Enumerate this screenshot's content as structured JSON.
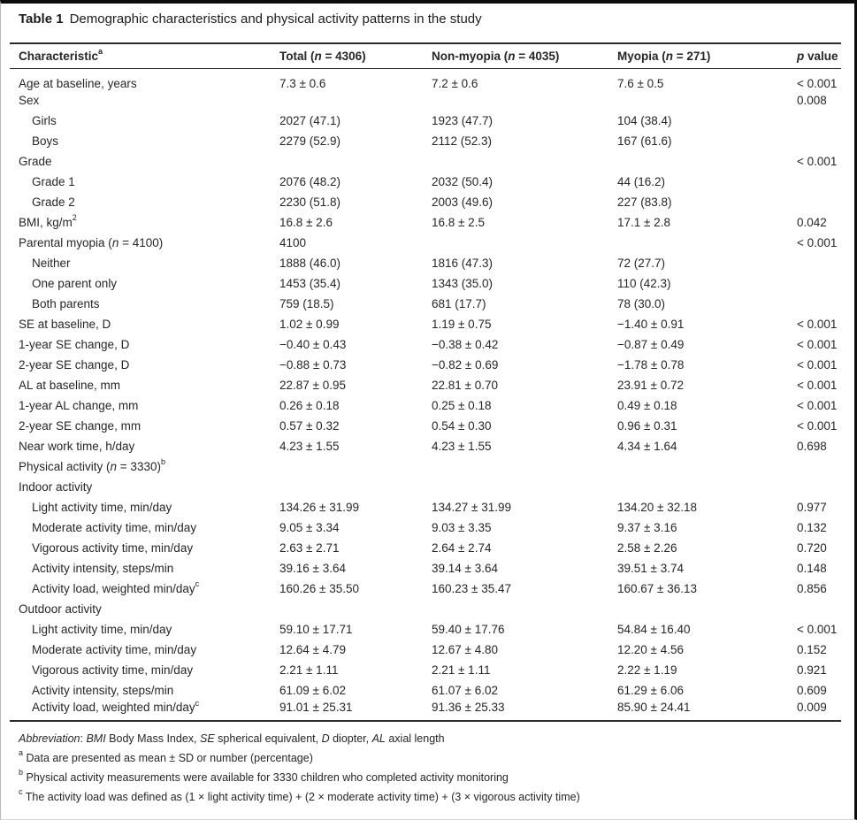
{
  "table": {
    "title_label": "Table 1",
    "title_text": "Demographic characteristics and physical activity patterns in the study",
    "columns": [
      {
        "key": "characteristic",
        "label": "Characteristic<sup>a</sup>"
      },
      {
        "key": "total",
        "label": "Total (<i>n</i> = 4306)"
      },
      {
        "key": "non-myopia",
        "label": "Non-myopia (<i>n</i> = 4035)"
      },
      {
        "key": "myopia",
        "label": "Myopia (<i>n</i> = 271)"
      },
      {
        "key": "p-value",
        "label": "<i>p</i> value"
      }
    ],
    "rows": [
      {
        "label": "Age at baseline, years",
        "indent": 0,
        "total": "7.3 ± 0.6",
        "non_myopia": "7.2 ± 0.6",
        "myopia": "7.6 ± 0.5",
        "p": "< 0.001"
      },
      {
        "label": "Sex",
        "indent": 0,
        "total": "",
        "non_myopia": "",
        "myopia": "",
        "p": "0.008"
      },
      {
        "label": "Girls",
        "indent": 1,
        "total": "2027 (47.1)",
        "non_myopia": "1923 (47.7)",
        "myopia": "104 (38.4)",
        "p": ""
      },
      {
        "label": "Boys",
        "indent": 1,
        "total": "2279 (52.9)",
        "non_myopia": "2112 (52.3)",
        "myopia": "167 (61.6)",
        "p": ""
      },
      {
        "label": "Grade",
        "indent": 0,
        "total": "",
        "non_myopia": "",
        "myopia": "",
        "p": "< 0.001"
      },
      {
        "label": "Grade 1",
        "indent": 1,
        "total": "2076 (48.2)",
        "non_myopia": "2032 (50.4)",
        "myopia": "44 (16.2)",
        "p": ""
      },
      {
        "label": "Grade 2",
        "indent": 1,
        "total": "2230 (51.8)",
        "non_myopia": "2003 (49.6)",
        "myopia": "227 (83.8)",
        "p": ""
      },
      {
        "label": "BMI, kg/m<sup>2</sup>",
        "indent": 0,
        "total": "16.8 ± 2.6",
        "non_myopia": "16.8 ± 2.5",
        "myopia": "17.1 ± 2.8",
        "p": "0.042"
      },
      {
        "label": "Parental myopia (<i>n</i> = 4100)",
        "indent": 0,
        "total": "4100",
        "non_myopia": "",
        "myopia": "",
        "p": "< 0.001"
      },
      {
        "label": "Neither",
        "indent": 1,
        "total": "1888 (46.0)",
        "non_myopia": "1816 (47.3)",
        "myopia": "72 (27.7)",
        "p": ""
      },
      {
        "label": "One parent only",
        "indent": 1,
        "total": "1453 (35.4)",
        "non_myopia": "1343 (35.0)",
        "myopia": "110 (42.3)",
        "p": ""
      },
      {
        "label": "Both parents",
        "indent": 1,
        "total": "759 (18.5)",
        "non_myopia": "681 (17.7)",
        "myopia": "78 (30.0)",
        "p": ""
      },
      {
        "label": "SE at baseline, D",
        "indent": 0,
        "total": "1.02 ± 0.99",
        "non_myopia": "1.19 ± 0.75",
        "myopia": "−1.40 ± 0.91",
        "p": "< 0.001"
      },
      {
        "label": "1-year SE change, D",
        "indent": 0,
        "total": "−0.40 ± 0.43",
        "non_myopia": "−0.38 ± 0.42",
        "myopia": "−0.87 ± 0.49",
        "p": "< 0.001"
      },
      {
        "label": "2-year SE change, D",
        "indent": 0,
        "total": "−0.88 ± 0.73",
        "non_myopia": "−0.82 ± 0.69",
        "myopia": "−1.78 ± 0.78",
        "p": "< 0.001"
      },
      {
        "label": "AL at baseline, mm",
        "indent": 0,
        "total": "22.87 ± 0.95",
        "non_myopia": "22.81 ± 0.70",
        "myopia": "23.91 ± 0.72",
        "p": "< 0.001"
      },
      {
        "label": "1-year AL change, mm",
        "indent": 0,
        "total": "0.26 ± 0.18",
        "non_myopia": "0.25 ± 0.18",
        "myopia": "0.49 ± 0.18",
        "p": "< 0.001"
      },
      {
        "label": "2-year SE change, mm",
        "indent": 0,
        "total": "0.57 ± 0.32",
        "non_myopia": "0.54 ± 0.30",
        "myopia": "0.96 ± 0.31",
        "p": "< 0.001"
      },
      {
        "label": "Near work time, h/day",
        "indent": 0,
        "total": "4.23 ± 1.55",
        "non_myopia": "4.23 ± 1.55",
        "myopia": "4.34 ± 1.64",
        "p": "0.698"
      },
      {
        "label": "Physical activity (<i>n</i> = 3330)<sup>b</sup>",
        "indent": 0,
        "total": "",
        "non_myopia": "",
        "myopia": "",
        "p": ""
      },
      {
        "label": "Indoor activity",
        "indent": 0,
        "total": "",
        "non_myopia": "",
        "myopia": "",
        "p": ""
      },
      {
        "label": "Light activity time, min/day",
        "indent": 1,
        "total": "134.26 ± 31.99",
        "non_myopia": "134.27 ± 31.99",
        "myopia": "134.20 ± 32.18",
        "p": "0.977"
      },
      {
        "label": "Moderate activity time, min/day",
        "indent": 1,
        "total": "9.05 ± 3.34",
        "non_myopia": "9.03 ± 3.35",
        "myopia": "9.37 ± 3.16",
        "p": "0.132"
      },
      {
        "label": "Vigorous activity time, min/day",
        "indent": 1,
        "total": "2.63 ± 2.71",
        "non_myopia": "2.64 ± 2.74",
        "myopia": "2.58 ± 2.26",
        "p": "0.720"
      },
      {
        "label": "Activity intensity, steps/min",
        "indent": 1,
        "total": "39.16 ± 3.64",
        "non_myopia": "39.14 ± 3.64",
        "myopia": "39.51 ± 3.74",
        "p": "0.148"
      },
      {
        "label": "Activity load, weighted min/day<sup>c</sup>",
        "indent": 1,
        "total": "160.26 ± 35.50",
        "non_myopia": "160.23 ± 35.47",
        "myopia": "160.67 ± 36.13",
        "p": "0.856"
      },
      {
        "label": "Outdoor activity",
        "indent": 0,
        "total": "",
        "non_myopia": "",
        "myopia": "",
        "p": ""
      },
      {
        "label": "Light activity time, min/day",
        "indent": 1,
        "total": "59.10 ± 17.71",
        "non_myopia": "59.40 ± 17.76",
        "myopia": "54.84 ± 16.40",
        "p": "< 0.001"
      },
      {
        "label": "Moderate activity time, min/day",
        "indent": 1,
        "total": "12.64 ± 4.79",
        "non_myopia": "12.67 ± 4.80",
        "myopia": "12.20 ± 4.56",
        "p": "0.152"
      },
      {
        "label": "Vigorous activity time, min/day",
        "indent": 1,
        "total": "2.21 ± 1.11",
        "non_myopia": "2.21 ± 1.11",
        "myopia": "2.22 ± 1.19",
        "p": "0.921"
      },
      {
        "label": "Activity intensity, steps/min",
        "indent": 1,
        "total": "61.09 ± 6.02",
        "non_myopia": "61.07 ± 6.02",
        "myopia": "61.29 ± 6.06",
        "p": "0.609"
      },
      {
        "label": "Activity load, weighted min/day<sup>c</sup>",
        "indent": 1,
        "total": "91.01 ± 25.31",
        "non_myopia": "91.36 ± 25.33",
        "myopia": "85.90 ± 24.41",
        "p": "0.009"
      }
    ],
    "footnotes": [
      "<i>Abbreviation</i>: <i>BMI</i> Body Mass Index, <i>SE</i> spherical equivalent, <i>D</i> diopter, <i>AL</i> axial length",
      "<sup>a</sup> Data are presented as mean ± SD or number (percentage)",
      "<sup>b</sup> Physical activity measurements were available for 3330 children who completed activity monitoring",
      "<sup>c</sup> The activity load was defined as (1 × light activity time) + (2 × moderate activity time) + (3 × vigorous activity time)"
    ]
  }
}
